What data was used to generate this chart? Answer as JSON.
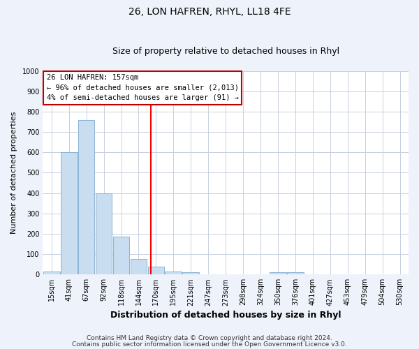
{
  "title": "26, LON HAFREN, RHYL, LL18 4FE",
  "subtitle": "Size of property relative to detached houses in Rhyl",
  "bar_labels": [
    "15sqm",
    "41sqm",
    "67sqm",
    "92sqm",
    "118sqm",
    "144sqm",
    "170sqm",
    "195sqm",
    "221sqm",
    "247sqm",
    "273sqm",
    "298sqm",
    "324sqm",
    "350sqm",
    "376sqm",
    "401sqm",
    "427sqm",
    "453sqm",
    "479sqm",
    "504sqm",
    "530sqm"
  ],
  "bar_values": [
    15,
    600,
    760,
    400,
    185,
    78,
    38,
    15,
    10,
    0,
    0,
    0,
    0,
    10,
    10,
    0,
    0,
    0,
    0,
    0,
    0
  ],
  "bar_color": "#c9ddf0",
  "bar_edge_color": "#8ab4d4",
  "vline_position": 5.72,
  "vline_color": "red",
  "annotation_title": "26 LON HAFREN: 157sqm",
  "annotation_line1": "← 96% of detached houses are smaller (2,013)",
  "annotation_line2": "4% of semi-detached houses are larger (91) →",
  "annotation_box_facecolor": "white",
  "annotation_box_edgecolor": "#c00000",
  "xlabel": "Distribution of detached houses by size in Rhyl",
  "ylabel": "Number of detached properties",
  "ylim": [
    0,
    1000
  ],
  "yticks": [
    0,
    100,
    200,
    300,
    400,
    500,
    600,
    700,
    800,
    900,
    1000
  ],
  "footer1": "Contains HM Land Registry data © Crown copyright and database right 2024.",
  "footer2": "Contains public sector information licensed under the Open Government Licence v3.0.",
  "plot_bg_color": "#ffffff",
  "fig_bg_color": "#eef2fa",
  "grid_color": "#c8d0e0",
  "title_fontsize": 10,
  "subtitle_fontsize": 9,
  "xlabel_fontsize": 9,
  "ylabel_fontsize": 8,
  "tick_fontsize": 7,
  "annotation_fontsize": 7.5,
  "footer_fontsize": 6.5
}
